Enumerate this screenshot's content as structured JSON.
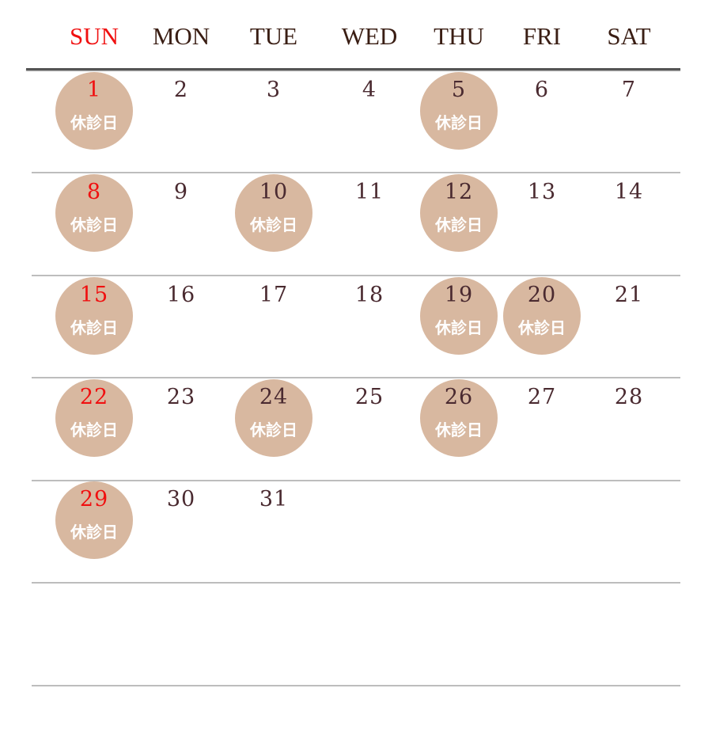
{
  "weekday_headers": [
    "SUN",
    "MON",
    "TUE",
    "WED",
    "THU",
    "FRI",
    "SAT"
  ],
  "closed_label": "休診日",
  "colors": {
    "sunday": "#f01010",
    "closed_circle": "#d8b8a0",
    "text": "#4a2a30"
  },
  "weeks": [
    [
      {
        "day": "1",
        "closed": true
      },
      {
        "day": "2",
        "closed": false
      },
      {
        "day": "3",
        "closed": false
      },
      {
        "day": "4",
        "closed": false
      },
      {
        "day": "5",
        "closed": true
      },
      {
        "day": "6",
        "closed": false
      },
      {
        "day": "7",
        "closed": false
      }
    ],
    [
      {
        "day": "8",
        "closed": true
      },
      {
        "day": "9",
        "closed": false
      },
      {
        "day": "10",
        "closed": true
      },
      {
        "day": "11",
        "closed": false
      },
      {
        "day": "12",
        "closed": true
      },
      {
        "day": "13",
        "closed": false
      },
      {
        "day": "14",
        "closed": false
      }
    ],
    [
      {
        "day": "15",
        "closed": true
      },
      {
        "day": "16",
        "closed": false
      },
      {
        "day": "17",
        "closed": false
      },
      {
        "day": "18",
        "closed": false
      },
      {
        "day": "19",
        "closed": true
      },
      {
        "day": "20",
        "closed": true
      },
      {
        "day": "21",
        "closed": false
      }
    ],
    [
      {
        "day": "22",
        "closed": true
      },
      {
        "day": "23",
        "closed": false
      },
      {
        "day": "24",
        "closed": true
      },
      {
        "day": "25",
        "closed": false
      },
      {
        "day": "26",
        "closed": true
      },
      {
        "day": "27",
        "closed": false
      },
      {
        "day": "28",
        "closed": false
      }
    ],
    [
      {
        "day": "29",
        "closed": true
      },
      {
        "day": "30",
        "closed": false
      },
      {
        "day": "31",
        "closed": false
      },
      null,
      null,
      null,
      null
    ],
    [
      null,
      null,
      null,
      null,
      null,
      null,
      null
    ]
  ]
}
